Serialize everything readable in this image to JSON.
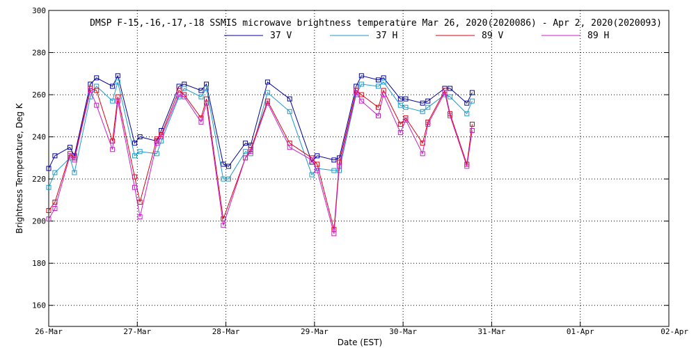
{
  "chart_data": {
    "type": "line",
    "title": "DMSP F-15,-16,-17,-18 SSMIS microwave brightness temperature Mar 26, 2020(2020086) - Apr  2, 2020(2020093)",
    "xlabel": "Date (EST)",
    "ylabel": "Brightness Temperature, Deg K",
    "xlim_days": [
      0,
      7
    ],
    "ylim": [
      150,
      300
    ],
    "yticks": [
      160,
      180,
      200,
      220,
      240,
      260,
      280,
      300
    ],
    "xtick_labels": [
      "26-Mar",
      "27-Mar",
      "28-Mar",
      "29-Mar",
      "30-Mar",
      "31-Mar",
      "01-Apr",
      "02-Apr"
    ],
    "grid": true,
    "legend": "top-center",
    "series": [
      {
        "name": "37 V",
        "color": "#00009c",
        "points": [
          [
            0.0,
            225
          ],
          [
            0.07,
            231
          ],
          [
            0.24,
            235
          ],
          [
            0.29,
            231
          ],
          [
            0.47,
            265
          ],
          [
            0.54,
            268
          ],
          [
            0.72,
            264
          ],
          [
            0.78,
            269
          ],
          [
            0.97,
            237
          ],
          [
            1.03,
            240
          ],
          [
            1.22,
            238
          ],
          [
            1.27,
            243
          ],
          [
            1.47,
            264
          ],
          [
            1.53,
            265
          ],
          [
            1.72,
            262
          ],
          [
            1.78,
            265
          ],
          [
            1.97,
            227
          ],
          [
            2.03,
            226
          ],
          [
            2.22,
            237
          ],
          [
            2.28,
            236
          ],
          [
            2.47,
            266
          ],
          [
            2.72,
            258
          ],
          [
            2.97,
            228
          ],
          [
            3.03,
            231
          ],
          [
            3.22,
            229
          ],
          [
            3.28,
            230
          ],
          [
            3.47,
            264
          ],
          [
            3.53,
            269
          ],
          [
            3.72,
            267
          ],
          [
            3.78,
            268
          ],
          [
            3.97,
            258
          ],
          [
            4.03,
            258
          ],
          [
            4.22,
            256
          ],
          [
            4.28,
            257
          ],
          [
            4.47,
            263
          ],
          [
            4.53,
            263
          ],
          [
            4.72,
            256
          ],
          [
            4.78,
            261
          ]
        ]
      },
      {
        "name": "37 H",
        "color": "#1e9ac8",
        "points": [
          [
            0.0,
            216
          ],
          [
            0.07,
            223
          ],
          [
            0.24,
            230
          ],
          [
            0.29,
            223
          ],
          [
            0.47,
            259
          ],
          [
            0.54,
            264
          ],
          [
            0.72,
            257
          ],
          [
            0.78,
            266
          ],
          [
            0.97,
            231
          ],
          [
            1.03,
            233
          ],
          [
            1.22,
            232
          ],
          [
            1.27,
            238
          ],
          [
            1.47,
            259
          ],
          [
            1.53,
            263
          ],
          [
            1.72,
            259
          ],
          [
            1.78,
            263
          ],
          [
            1.97,
            220
          ],
          [
            2.03,
            220
          ],
          [
            2.22,
            233
          ],
          [
            2.28,
            232
          ],
          [
            2.47,
            261
          ],
          [
            2.72,
            252
          ],
          [
            2.97,
            222
          ],
          [
            3.03,
            225
          ],
          [
            3.22,
            224
          ],
          [
            3.28,
            224
          ],
          [
            3.47,
            260
          ],
          [
            3.53,
            265
          ],
          [
            3.72,
            264
          ],
          [
            3.78,
            266
          ],
          [
            3.97,
            255
          ],
          [
            4.03,
            254
          ],
          [
            4.22,
            252
          ],
          [
            4.28,
            254
          ],
          [
            4.47,
            260
          ],
          [
            4.53,
            259
          ],
          [
            4.72,
            251
          ],
          [
            4.78,
            257
          ]
        ]
      },
      {
        "name": "89 V",
        "color": "#dc0014",
        "points": [
          [
            0.0,
            205
          ],
          [
            0.07,
            209
          ],
          [
            0.24,
            232
          ],
          [
            0.29,
            230
          ],
          [
            0.47,
            263
          ],
          [
            0.54,
            262
          ],
          [
            0.72,
            238
          ],
          [
            0.78,
            259
          ],
          [
            0.97,
            221
          ],
          [
            1.03,
            209
          ],
          [
            1.22,
            239
          ],
          [
            1.27,
            241
          ],
          [
            1.47,
            262
          ],
          [
            1.53,
            260
          ],
          [
            1.72,
            249
          ],
          [
            1.78,
            258
          ],
          [
            1.97,
            201
          ],
          [
            2.22,
            230
          ],
          [
            2.28,
            234
          ],
          [
            2.47,
            257
          ],
          [
            2.72,
            237
          ],
          [
            2.97,
            230
          ],
          [
            3.03,
            227
          ],
          [
            3.22,
            196
          ],
          [
            3.28,
            228
          ],
          [
            3.47,
            262
          ],
          [
            3.53,
            260
          ],
          [
            3.72,
            254
          ],
          [
            3.78,
            262
          ],
          [
            3.97,
            246
          ],
          [
            4.03,
            249
          ],
          [
            4.22,
            237
          ],
          [
            4.28,
            247
          ],
          [
            4.47,
            262
          ],
          [
            4.53,
            251
          ],
          [
            4.72,
            227
          ],
          [
            4.78,
            246
          ]
        ]
      },
      {
        "name": "89 H",
        "color": "#c81ec8",
        "points": [
          [
            0.0,
            201
          ],
          [
            0.07,
            206
          ],
          [
            0.24,
            231
          ],
          [
            0.29,
            229
          ],
          [
            0.47,
            262
          ],
          [
            0.54,
            255
          ],
          [
            0.72,
            234
          ],
          [
            0.78,
            257
          ],
          [
            0.97,
            216
          ],
          [
            1.03,
            202
          ],
          [
            1.22,
            237
          ],
          [
            1.27,
            240
          ],
          [
            1.47,
            260
          ],
          [
            1.53,
            259
          ],
          [
            1.72,
            247
          ],
          [
            1.78,
            256
          ],
          [
            1.97,
            198
          ],
          [
            2.22,
            230
          ],
          [
            2.28,
            233
          ],
          [
            2.47,
            256
          ],
          [
            2.72,
            235
          ],
          [
            2.97,
            229
          ],
          [
            3.03,
            224
          ],
          [
            3.22,
            194
          ],
          [
            3.28,
            226
          ],
          [
            3.47,
            261
          ],
          [
            3.53,
            257
          ],
          [
            3.72,
            250
          ],
          [
            3.78,
            260
          ],
          [
            3.97,
            242
          ],
          [
            4.03,
            248
          ],
          [
            4.22,
            232
          ],
          [
            4.28,
            246
          ],
          [
            4.47,
            261
          ],
          [
            4.53,
            250
          ],
          [
            4.72,
            226
          ],
          [
            4.78,
            243
          ]
        ]
      }
    ]
  }
}
